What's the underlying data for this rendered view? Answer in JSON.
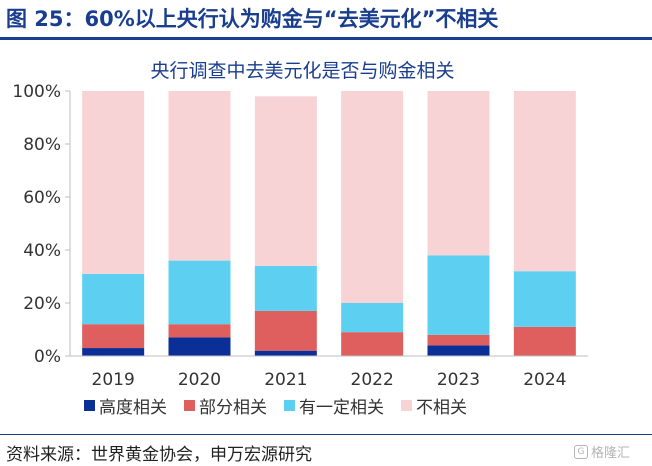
{
  "figure_title": "图 25：60%以上央行认为购金与“去美元化”不相关",
  "source_note": "资料来源：世界黄金协会，申万宏源研究",
  "watermark": {
    "glyph": "G",
    "text": "格隆汇"
  },
  "colors": {
    "title": "#1a3e8f",
    "highly": "#0a2f96",
    "partly": "#df5f5f",
    "somewhat": "#5dd0f2",
    "not": "#f8d3d5",
    "axis": "#bfbfbf"
  },
  "chart_data": {
    "type": "bar",
    "stacked": true,
    "title": "央行调查中去美元化是否与购金相关",
    "categories": [
      "2019",
      "2020",
      "2021",
      "2022",
      "2023",
      "2024"
    ],
    "series": [
      {
        "name": "高度相关",
        "color": "#0a2f96",
        "values": [
          3,
          7,
          2,
          0,
          4,
          0
        ]
      },
      {
        "name": "部分相关",
        "color": "#df5f5f",
        "values": [
          9,
          5,
          15,
          9,
          4,
          11
        ]
      },
      {
        "name": "有一定相关",
        "color": "#5dd0f2",
        "values": [
          19,
          24,
          17,
          11,
          30,
          21
        ]
      },
      {
        "name": "不相关",
        "color": "#f8d3d5",
        "values": [
          69,
          64,
          64,
          80,
          62,
          68
        ]
      }
    ],
    "ylim": [
      0,
      100
    ],
    "yticks": [
      "0%",
      "20%",
      "40%",
      "60%",
      "80%",
      "100%"
    ],
    "grid": false,
    "legend_position": "bottom"
  }
}
